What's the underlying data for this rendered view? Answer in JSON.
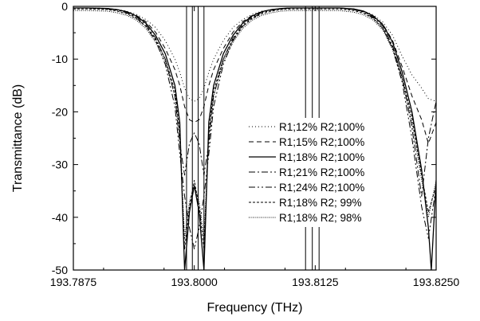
{
  "chart_data": {
    "type": "line",
    "title": "",
    "xlabel": "Frequency (THz)",
    "ylabel": "Transmittance (dB)",
    "xlim": [
      193.7875,
      193.825
    ],
    "ylim": [
      -50,
      0
    ],
    "xticks": [
      193.7875,
      193.8,
      193.8125,
      193.825
    ],
    "xtick_labels": [
      "193.7875",
      "193.8000",
      "193.8125",
      "193.8250"
    ],
    "yticks": [
      0,
      -10,
      -20,
      -30,
      -40,
      -50
    ],
    "ytick_labels": [
      "0",
      "-10",
      "-20",
      "-30",
      "-40",
      "-50"
    ],
    "grid": false,
    "legend_position": "center-right",
    "series": [
      {
        "name": "R1;12% R2;100%",
        "dash": "1,3",
        "width": 1.0,
        "floor": -18,
        "x": [
          193.7875,
          193.789,
          193.791,
          193.792,
          193.793,
          193.794,
          193.795,
          193.796,
          193.797,
          193.798,
          193.7985,
          193.799,
          193.7995,
          193.8,
          193.8005,
          193.801,
          193.8015,
          193.802,
          193.803,
          193.804,
          193.805,
          193.806,
          193.807,
          193.808,
          193.809,
          193.81,
          193.8125,
          193.815,
          193.8165,
          193.8175,
          193.8185,
          193.8195,
          193.8205,
          193.8215,
          193.8225,
          193.8235,
          193.8242,
          193.825
        ],
        "y": [
          -0.3,
          -0.3,
          -0.4,
          -0.6,
          -0.9,
          -1.5,
          -2.5,
          -4,
          -6.5,
          -10,
          -12.5,
          -15.5,
          -17.5,
          -18,
          -17.5,
          -15.5,
          -12.5,
          -10,
          -6.5,
          -4,
          -2.5,
          -1.5,
          -0.9,
          -0.6,
          -0.4,
          -0.3,
          -0.3,
          -0.3,
          -0.5,
          -0.9,
          -1.6,
          -3,
          -5.5,
          -9.5,
          -13,
          -15.5,
          -17.5,
          -18
        ]
      },
      {
        "name": "R1;15% R2;100%",
        "dash": "6,4",
        "width": 1.0,
        "floor": -22,
        "x": [
          193.7875,
          193.789,
          193.791,
          193.792,
          193.793,
          193.794,
          193.795,
          193.796,
          193.797,
          193.798,
          193.7985,
          193.799,
          193.7995,
          193.8,
          193.8005,
          193.801,
          193.8015,
          193.802,
          193.803,
          193.804,
          193.805,
          193.806,
          193.807,
          193.808,
          193.809,
          193.81,
          193.8125,
          193.815,
          193.8165,
          193.8175,
          193.8185,
          193.8195,
          193.8205,
          193.8215,
          193.8225,
          193.8235,
          193.8242,
          193.825
        ],
        "y": [
          -0.3,
          -0.3,
          -0.4,
          -0.6,
          -1,
          -1.7,
          -2.9,
          -4.9,
          -8,
          -12,
          -15,
          -19,
          -21.5,
          -22,
          -21.5,
          -19,
          -15,
          -12,
          -8,
          -4.9,
          -2.9,
          -1.7,
          -1,
          -0.6,
          -0.4,
          -0.3,
          -0.3,
          -0.3,
          -0.5,
          -0.9,
          -1.8,
          -3.4,
          -6.5,
          -11.5,
          -17,
          -21.5,
          -26,
          -22
        ]
      },
      {
        "name": "R1;18% R2;100%",
        "dash": "none",
        "width": 1.3,
        "floor": -50,
        "x": [
          193.7875,
          193.789,
          193.791,
          193.792,
          193.793,
          193.794,
          193.795,
          193.796,
          193.797,
          193.798,
          193.7985,
          193.799,
          193.7995,
          193.8,
          193.8005,
          193.801,
          193.8015,
          193.802,
          193.803,
          193.804,
          193.805,
          193.806,
          193.807,
          193.808,
          193.809,
          193.81,
          193.8125,
          193.815,
          193.8165,
          193.8175,
          193.8185,
          193.8195,
          193.8205,
          193.8215,
          193.8225,
          193.8235,
          193.8242,
          193.8245,
          193.825
        ],
        "y": [
          -0.3,
          -0.3,
          -0.4,
          -0.6,
          -1,
          -1.8,
          -3.2,
          -5.5,
          -9,
          -15,
          -22,
          -50,
          -39,
          -34,
          -39,
          -50,
          -22,
          -15,
          -9,
          -5.5,
          -3.2,
          -1.8,
          -1,
          -0.6,
          -0.4,
          -0.3,
          -0.3,
          -0.3,
          -0.5,
          -0.9,
          -1.8,
          -3.5,
          -6.8,
          -12.5,
          -20,
          -31,
          -42,
          -50,
          -33
        ]
      },
      {
        "name": "R1;21% R2;100%",
        "dash": "8,3,2,3",
        "width": 1.0,
        "floor": -26,
        "x": [
          193.7875,
          193.789,
          193.791,
          193.792,
          193.793,
          193.794,
          193.795,
          193.796,
          193.797,
          193.798,
          193.7985,
          193.799,
          193.7995,
          193.8,
          193.8005,
          193.801,
          193.8015,
          193.802,
          193.803,
          193.804,
          193.805,
          193.806,
          193.807,
          193.808,
          193.809,
          193.81,
          193.8125,
          193.815,
          193.8165,
          193.8175,
          193.8185,
          193.8195,
          193.8205,
          193.8215,
          193.8225,
          193.8235,
          193.8242,
          193.825
        ],
        "y": [
          -0.3,
          -0.3,
          -0.4,
          -0.7,
          -1.1,
          -2,
          -3.5,
          -6,
          -10,
          -17,
          -26,
          -32,
          -26,
          -24,
          -26,
          -32,
          -26,
          -17,
          -10,
          -6,
          -3.5,
          -2,
          -1.1,
          -0.7,
          -0.4,
          -0.3,
          -0.3,
          -0.3,
          -0.6,
          -1,
          -2,
          -3.8,
          -7.5,
          -13.5,
          -23,
          -36,
          -25,
          -18
        ]
      },
      {
        "name": "R1;24% R2;100%",
        "dash": "8,3,2,3,2,3",
        "width": 1.0,
        "floor": -34,
        "x": [
          193.7875,
          193.789,
          193.791,
          193.792,
          193.793,
          193.794,
          193.795,
          193.796,
          193.797,
          193.798,
          193.7985,
          193.799,
          193.7995,
          193.8,
          193.8005,
          193.801,
          193.8015,
          193.802,
          193.803,
          193.804,
          193.805,
          193.806,
          193.807,
          193.808,
          193.809,
          193.81,
          193.8125,
          193.815,
          193.8165,
          193.8175,
          193.8185,
          193.8195,
          193.8205,
          193.8215,
          193.8225,
          193.8235,
          193.8242,
          193.825
        ],
        "y": [
          -0.3,
          -0.3,
          -0.5,
          -0.7,
          -1.2,
          -2.2,
          -3.8,
          -6.5,
          -11,
          -19,
          -28,
          -36,
          -42,
          -46,
          -42,
          -36,
          -28,
          -19,
          -11,
          -6.5,
          -3.8,
          -2.2,
          -1.2,
          -0.7,
          -0.5,
          -0.3,
          -0.3,
          -0.3,
          -0.6,
          -1.1,
          -2.2,
          -4.2,
          -8,
          -14.5,
          -25,
          -38,
          -44,
          -34
        ]
      },
      {
        "name": "R1;18% R2; 99%",
        "dash": "3,2",
        "width": 1.0,
        "floor": -33,
        "x": [
          193.7875,
          193.789,
          193.791,
          193.792,
          193.793,
          193.794,
          193.795,
          193.796,
          193.797,
          193.798,
          193.7985,
          193.799,
          193.7995,
          193.8,
          193.8005,
          193.801,
          193.8015,
          193.802,
          193.803,
          193.804,
          193.805,
          193.806,
          193.807,
          193.808,
          193.809,
          193.81,
          193.8125,
          193.815,
          193.8165,
          193.8175,
          193.8185,
          193.8195,
          193.8205,
          193.8215,
          193.8225,
          193.8235,
          193.8242,
          193.825
        ],
        "y": [
          -0.5,
          -0.5,
          -0.6,
          -0.9,
          -1.4,
          -2.3,
          -3.8,
          -6.3,
          -10,
          -16,
          -24,
          -46,
          -38,
          -33,
          -38,
          -46,
          -24,
          -16,
          -10,
          -6.3,
          -3.8,
          -2.3,
          -1.4,
          -0.9,
          -0.6,
          -0.5,
          -0.5,
          -0.5,
          -0.8,
          -1.3,
          -2.3,
          -4.2,
          -7.8,
          -13.5,
          -21,
          -32,
          -39,
          -34
        ]
      },
      {
        "name": "R1;18% R2; 98%",
        "dash": "1,1.5",
        "width": 1.0,
        "floor": -33,
        "x": [
          193.7875,
          193.789,
          193.791,
          193.792,
          193.793,
          193.794,
          193.795,
          193.796,
          193.797,
          193.798,
          193.7985,
          193.799,
          193.7995,
          193.8,
          193.8005,
          193.801,
          193.8015,
          193.802,
          193.803,
          193.804,
          193.805,
          193.806,
          193.807,
          193.808,
          193.809,
          193.81,
          193.8125,
          193.815,
          193.8165,
          193.8175,
          193.8185,
          193.8195,
          193.8205,
          193.8215,
          193.8225,
          193.8235,
          193.8242,
          193.825
        ],
        "y": [
          -0.8,
          -0.8,
          -0.9,
          -1.2,
          -1.7,
          -2.6,
          -4.2,
          -6.8,
          -10.5,
          -17,
          -25,
          -44,
          -37,
          -34,
          -37,
          -44,
          -25,
          -17,
          -10.5,
          -6.8,
          -4.2,
          -2.6,
          -1.7,
          -1.2,
          -0.9,
          -0.8,
          -0.8,
          -0.8,
          -1.1,
          -1.6,
          -2.6,
          -4.5,
          -8.2,
          -14,
          -22,
          -33,
          -40,
          -33
        ]
      }
    ],
    "markers": [
      {
        "type": "rect",
        "x0": 193.7992,
        "x1": 193.801,
        "y0": -50,
        "y1": 0
      },
      {
        "type": "vline",
        "x": 193.7998,
        "y0": -50,
        "y1": 0
      },
      {
        "type": "vline",
        "x": 193.8004,
        "y0": -50,
        "y1": 0
      },
      {
        "type": "vline",
        "x": 193.8115,
        "y0": -50,
        "y1": 0
      },
      {
        "type": "vline",
        "x": 193.8122,
        "y0": -50,
        "y1": 0
      },
      {
        "type": "vline",
        "x": 193.8129,
        "y0": -50,
        "y1": 0
      }
    ]
  }
}
